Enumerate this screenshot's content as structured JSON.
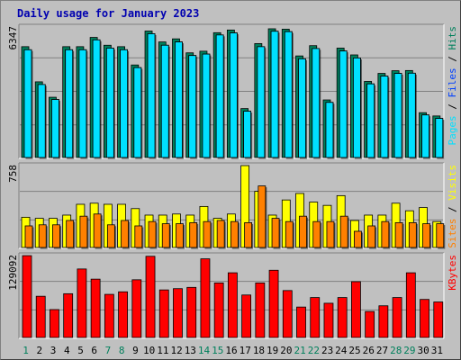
{
  "title": "Daily usage for January 2023",
  "colors": {
    "background": "#c0c0c0",
    "hits": "#00805c",
    "files": "#0040ff",
    "pages": "#00e0ff",
    "visits": "#ffff00",
    "sites": "#ff8000",
    "kbytes": "#ff0000",
    "weekend_day": "#00805c",
    "weekday": "#0000b0",
    "title": "#0000b0"
  },
  "chart_data": [
    {
      "type": "bar",
      "panel": "hits-files-pages",
      "categories": [
        "1",
        "2",
        "3",
        "4",
        "5",
        "6",
        "7",
        "8",
        "9",
        "10",
        "11",
        "12",
        "13",
        "14",
        "15",
        "16",
        "17",
        "18",
        "19",
        "20",
        "21",
        "22",
        "23",
        "24",
        "25",
        "26",
        "27",
        "28",
        "29",
        "30",
        "31"
      ],
      "weekend_days": [
        "1",
        "7",
        "8",
        "14",
        "15",
        "21",
        "22",
        "28",
        "29"
      ],
      "y_max_label": "6347",
      "ylim": [
        0,
        6347
      ],
      "right_label_parts": [
        "Pages",
        "Files",
        "Hits"
      ],
      "series": [
        {
          "name": "Hits",
          "values": [
            5390,
            3680,
            2930,
            5390,
            5390,
            5840,
            5460,
            5390,
            4500,
            6150,
            5620,
            5770,
            5090,
            5170,
            6070,
            6200,
            2380,
            5540,
            6260,
            6240,
            4940,
            5440,
            2800,
            5320,
            4990,
            3700,
            4090,
            4220,
            4230,
            2180,
            2020
          ]
        },
        {
          "name": "Files",
          "values": [
            5240,
            3550,
            2820,
            5240,
            5240,
            5720,
            5320,
            5240,
            4370,
            6020,
            5460,
            5620,
            4960,
            5030,
            5960,
            6060,
            2250,
            5390,
            6140,
            6120,
            4800,
            5300,
            2680,
            5180,
            4840,
            3580,
            3960,
            4090,
            4100,
            2070,
            1900
          ]
        },
        {
          "name": "Pages",
          "values": [
            5240,
            3550,
            2820,
            5240,
            5240,
            5720,
            5320,
            5240,
            4370,
            6020,
            5460,
            5620,
            4960,
            5030,
            5960,
            6060,
            2250,
            5390,
            6140,
            6120,
            4800,
            5300,
            2680,
            5180,
            4840,
            3580,
            3960,
            4090,
            4100,
            2070,
            1900
          ]
        }
      ]
    },
    {
      "type": "bar",
      "panel": "visits-sites",
      "categories": [
        "1",
        "2",
        "3",
        "4",
        "5",
        "6",
        "7",
        "8",
        "9",
        "10",
        "11",
        "12",
        "13",
        "14",
        "15",
        "16",
        "17",
        "18",
        "19",
        "20",
        "21",
        "22",
        "23",
        "24",
        "25",
        "26",
        "27",
        "28",
        "29",
        "30",
        "31"
      ],
      "y_max_label": "758",
      "ylim": [
        0,
        758
      ],
      "right_label_parts": [
        "Sites",
        "Visits"
      ],
      "series": [
        {
          "name": "Visits",
          "values": [
            280,
            270,
            270,
            300,
            400,
            410,
            400,
            400,
            360,
            300,
            300,
            310,
            300,
            380,
            270,
            310,
            758,
            520,
            300,
            440,
            500,
            420,
            390,
            480,
            250,
            300,
            300,
            410,
            340,
            370,
            240
          ]
        },
        {
          "name": "Sites",
          "values": [
            200,
            210,
            210,
            250,
            290,
            310,
            210,
            250,
            200,
            240,
            220,
            220,
            230,
            240,
            250,
            240,
            230,
            570,
            270,
            240,
            290,
            240,
            240,
            290,
            150,
            200,
            240,
            230,
            230,
            220,
            220
          ]
        }
      ]
    },
    {
      "type": "bar",
      "panel": "kbytes",
      "categories": [
        "1",
        "2",
        "3",
        "4",
        "5",
        "6",
        "7",
        "8",
        "9",
        "10",
        "11",
        "12",
        "13",
        "14",
        "15",
        "16",
        "17",
        "18",
        "19",
        "20",
        "21",
        "22",
        "23",
        "24",
        "25",
        "26",
        "27",
        "28",
        "29",
        "30",
        "31"
      ],
      "y_max_label": "129092",
      "ylim": [
        0,
        129092
      ],
      "right_label_parts": [
        "KBytes"
      ],
      "series": [
        {
          "name": "KBytes",
          "values": [
            129000,
            65000,
            44000,
            69000,
            108000,
            92000,
            68000,
            72000,
            91000,
            128000,
            75000,
            77000,
            79000,
            124000,
            86000,
            102000,
            67000,
            86000,
            106000,
            74000,
            48000,
            63000,
            54000,
            63000,
            88000,
            41000,
            50000,
            63000,
            102000,
            60000,
            56000
          ]
        }
      ]
    }
  ]
}
